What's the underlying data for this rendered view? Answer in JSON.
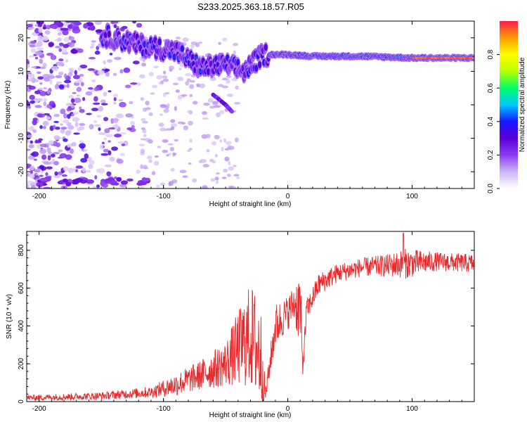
{
  "title": "S233.2025.363.18.57.R05",
  "chart_data": [
    {
      "type": "heatmap",
      "xlabel": "Height of straight line (km)",
      "ylabel": "Frequency (Hz)",
      "xlim": [
        -210,
        150
      ],
      "ylim": [
        -25,
        25
      ],
      "xticks": [
        -200,
        -100,
        0,
        100
      ],
      "yticks": [
        -20,
        -10,
        0,
        10,
        20
      ],
      "colorbar": {
        "label": "Normalized spectral amplitude",
        "range": [
          0,
          1
        ],
        "ticks": [
          0.0,
          0.2,
          0.4,
          0.6,
          0.8
        ],
        "colormap": [
          "#ffffff",
          "#cdb4f5",
          "#8a3df0",
          "#5b00d6",
          "#1818ff",
          "#00c8ff",
          "#00ff66",
          "#b8ff00",
          "#ffff00",
          "#ff9a00",
          "#ff1a4a"
        ]
      },
      "ridge": {
        "description_points": [
          {
            "x": -150,
            "y": 21
          },
          {
            "x": -120,
            "y": 18
          },
          {
            "x": -90,
            "y": 16
          },
          {
            "x": -70,
            "y": 11
          },
          {
            "x": -50,
            "y": 12
          },
          {
            "x": -35,
            "y": 10
          },
          {
            "x": -20,
            "y": 15
          },
          {
            "x": 0,
            "y": 15
          },
          {
            "x": 20,
            "y": 14.5
          },
          {
            "x": 60,
            "y": 14.5
          },
          {
            "x": 100,
            "y": 14
          },
          {
            "x": 150,
            "y": 14
          }
        ],
        "peak_amplitude": 0.95
      },
      "secondary_ridge": [
        {
          "x": -60,
          "y": 3
        },
        {
          "x": -50,
          "y": 0
        },
        {
          "x": -45,
          "y": -2
        }
      ]
    },
    {
      "type": "line",
      "xlabel": "Height of straight line (km)",
      "ylabel": "SNR (10 * v/v)",
      "xlim": [
        -210,
        150
      ],
      "ylim": [
        0,
        900
      ],
      "xticks": [
        -200,
        -100,
        0,
        100
      ],
      "yticks": [
        0,
        200,
        400,
        600,
        800
      ],
      "color": "#e8282b",
      "envelope": [
        {
          "x": -210,
          "mean": 20,
          "spread": 15
        },
        {
          "x": -150,
          "mean": 30,
          "spread": 20
        },
        {
          "x": -110,
          "mean": 50,
          "spread": 30
        },
        {
          "x": -90,
          "mean": 90,
          "spread": 60
        },
        {
          "x": -70,
          "mean": 140,
          "spread": 80
        },
        {
          "x": -50,
          "mean": 200,
          "spread": 120
        },
        {
          "x": -40,
          "mean": 280,
          "spread": 200
        },
        {
          "x": -30,
          "mean": 350,
          "spread": 280
        },
        {
          "x": -22,
          "mean": 250,
          "spread": 300
        },
        {
          "x": -18,
          "mean": 30,
          "spread": 40
        },
        {
          "x": -10,
          "mean": 400,
          "spread": 120
        },
        {
          "x": 0,
          "mean": 470,
          "spread": 90
        },
        {
          "x": 5,
          "mean": 520,
          "spread": 100
        },
        {
          "x": 10,
          "mean": 500,
          "spread": 220
        },
        {
          "x": 12,
          "mean": 170,
          "spread": 50
        },
        {
          "x": 15,
          "mean": 480,
          "spread": 60
        },
        {
          "x": 25,
          "mean": 620,
          "spread": 60
        },
        {
          "x": 40,
          "mean": 680,
          "spread": 50
        },
        {
          "x": 60,
          "mean": 710,
          "spread": 50
        },
        {
          "x": 80,
          "mean": 720,
          "spread": 60
        },
        {
          "x": 95,
          "mean": 730,
          "spread": 80
        },
        {
          "x": 120,
          "mean": 740,
          "spread": 50
        },
        {
          "x": 150,
          "mean": 730,
          "spread": 50
        }
      ],
      "max_value": 890,
      "min_value": 0
    }
  ]
}
